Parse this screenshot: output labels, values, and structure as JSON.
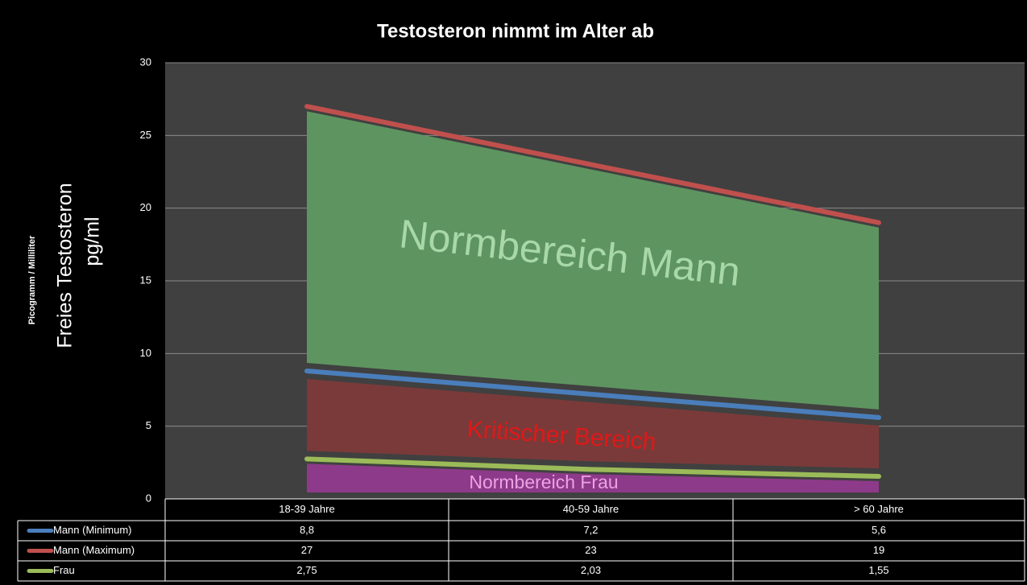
{
  "chart_data": {
    "type": "line",
    "title": "Testosteron nimmt im Alter ab",
    "y_label_small": "Picogramm / Milliliter",
    "y_label": [
      "Freies Testosteron",
      "pg/ml"
    ],
    "categories": [
      "18-39 Jahre",
      "40-59 Jahre",
      "> 60 Jahre"
    ],
    "series": [
      {
        "name": "Mann (Minimum)",
        "color": "#4a7ebb",
        "values": [
          8.8,
          7.2,
          5.6
        ],
        "value_labels": [
          "8,8",
          "7,2",
          "5,6"
        ]
      },
      {
        "name": "Mann (Maximum)",
        "color": "#c0504d",
        "values": [
          27,
          23,
          19
        ],
        "value_labels": [
          "27",
          "23",
          "19"
        ]
      },
      {
        "name": "Frau",
        "color": "#9bbb59",
        "values": [
          2.75,
          2.03,
          1.55
        ],
        "value_labels": [
          "2,75",
          "2,03",
          "1,55"
        ]
      }
    ],
    "annotations": [
      "Normbereich Mann",
      "Kritischer Bereich",
      "Normbereich Frau"
    ],
    "ylim": [
      0,
      30
    ],
    "yticks": [
      0,
      5,
      10,
      15,
      20,
      25,
      30
    ],
    "grid": true
  }
}
